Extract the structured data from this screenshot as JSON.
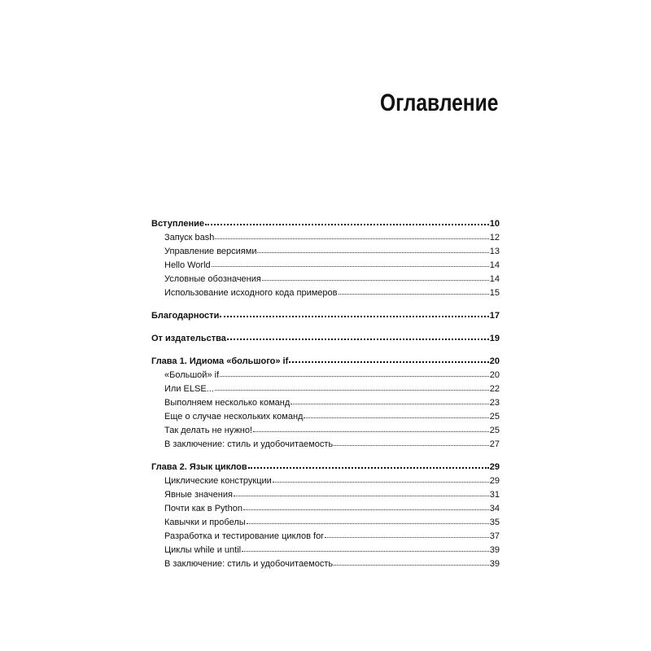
{
  "title": "Оглавление",
  "sections": [
    {
      "label": "Вступление",
      "page": "10",
      "items": [
        {
          "label": "Запуск bash",
          "page": "12"
        },
        {
          "label": "Управление версиями",
          "page": "13"
        },
        {
          "label": "Hello World",
          "page": "14"
        },
        {
          "label": "Условные обозначения",
          "page": "14"
        },
        {
          "label": "Использование исходного кода примеров",
          "page": "15"
        }
      ]
    },
    {
      "label": "Благодарности",
      "page": "17",
      "items": []
    },
    {
      "label": "От издательства",
      "page": "19",
      "items": []
    },
    {
      "label": "Глава 1. Идиома «большого» if",
      "page": "20",
      "items": [
        {
          "label": "«Большой» if",
          "page": "20"
        },
        {
          "label": "Или ELSE...",
          "page": "22"
        },
        {
          "label": "Выполняем несколько команд",
          "page": "23"
        },
        {
          "label": "Еще о случае нескольких команд",
          "page": "25"
        },
        {
          "label": "Так делать не нужно!",
          "page": "25"
        },
        {
          "label": "В заключение: стиль и удобочитаемость",
          "page": "27"
        }
      ]
    },
    {
      "label": "Глава 2. Язык циклов",
      "page": "29",
      "items": [
        {
          "label": "Циклические конструкции",
          "page": "29"
        },
        {
          "label": "Явные значения",
          "page": "31"
        },
        {
          "label": "Почти как в Python",
          "page": "34"
        },
        {
          "label": "Кавычки и пробелы",
          "page": "35"
        },
        {
          "label": "Разработка и тестирование циклов for",
          "page": "37"
        },
        {
          "label": "Циклы while и until",
          "page": "39"
        },
        {
          "label": "В заключение: стиль и удобочитаемость",
          "page": "39"
        }
      ]
    }
  ]
}
